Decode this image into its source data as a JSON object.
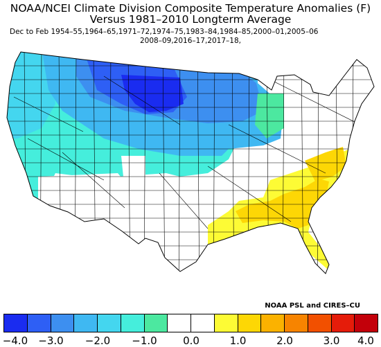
{
  "title_line1": "NOAA/NCEI Climate Division Composite Temperature Anomalies (F)",
  "title_line2": "Versus 1981–2010 Longterm Average",
  "subtitle_line1": "Dec to Feb  1954–55,1964–65,1971–72,1974–75,1983–84,1984–85,2000–01,2005–06",
  "subtitle_line2": "2008–09,2016–17,2017–18,",
  "credit": "NOAA PSL and CIRES–CU",
  "colorbar": {
    "colors": [
      "#1a2cf0",
      "#2e5ff5",
      "#3d8ff0",
      "#3fb8f2",
      "#44d6ef",
      "#45eedc",
      "#4ce8a0",
      "#ffffff",
      "#ffffff",
      "#fdfb35",
      "#fdd705",
      "#fbb200",
      "#f78400",
      "#f25000",
      "#e51c0a",
      "#c3000a"
    ],
    "ticks": [
      "−4.0",
      "−3.0",
      "−2.0",
      "−1.0",
      "0.0",
      "1.0",
      "2.0",
      "3.0",
      "4.0"
    ]
  },
  "map": {
    "regions": [
      {
        "name": "northern-plains-cold-core",
        "color": "#1a2cf0"
      },
      {
        "name": "upper-midwest-cold",
        "color": "#2e5ff5"
      },
      {
        "name": "northern-tier-cold",
        "color": "#3d8ff0"
      },
      {
        "name": "northwest-cool",
        "color": "#44d6ef"
      },
      {
        "name": "west-mild-cool",
        "color": "#45eedc"
      },
      {
        "name": "near-normal",
        "color": "#ffffff"
      },
      {
        "name": "southeast-warm",
        "color": "#fdfb35"
      },
      {
        "name": "georgia-carolinas-warm",
        "color": "#fdd705"
      }
    ]
  }
}
